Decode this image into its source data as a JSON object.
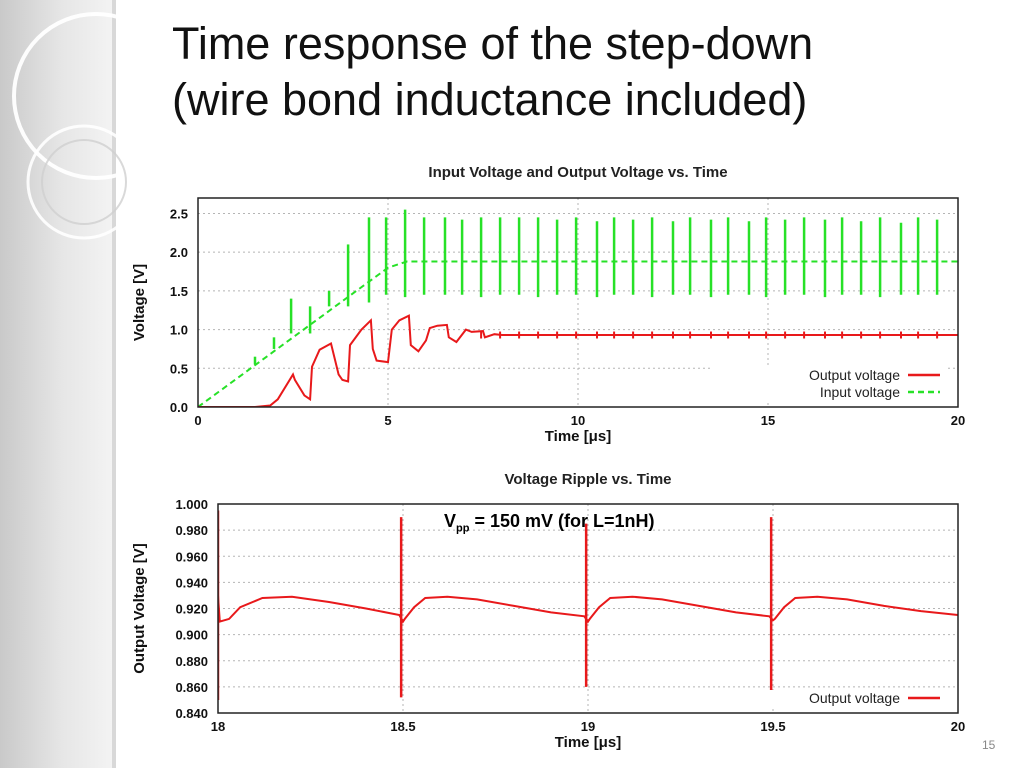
{
  "slide": {
    "title_line1": "Time response of the step-down",
    "title_line2": "(wire bond inductance included)",
    "slide_number": "15"
  },
  "annotation": {
    "main": "V",
    "sub": "pp",
    "rest": " = 150 mV (for L=1nH)"
  },
  "chart_data": [
    {
      "type": "line",
      "title": "Input Voltage and Output Voltage vs. Time",
      "xlabel": "Time [μs]",
      "ylabel": "Voltage [V]",
      "xlim": [
        0,
        20
      ],
      "ylim": [
        0,
        2.7
      ],
      "xticks": [
        0,
        5,
        10,
        15,
        20
      ],
      "yticks": [
        0,
        0.5,
        1.0,
        1.5,
        2.0,
        2.5
      ],
      "ytick_labels": [
        "0.0",
        "0.5",
        "1.0",
        "1.5",
        "2.0",
        "2.5"
      ],
      "grid": true,
      "legend_position": "bottom-right",
      "series": [
        {
          "name": "Output voltage",
          "color": "#e8191b",
          "style": "solid",
          "x": [
            0,
            1.5,
            1.9,
            2.1,
            2.5,
            2.55,
            2.8,
            2.95,
            3.0,
            3.2,
            3.5,
            3.7,
            3.8,
            3.95,
            4.0,
            4.3,
            4.55,
            4.6,
            4.7,
            5.0,
            5.1,
            5.3,
            5.55,
            5.6,
            5.8,
            6.0,
            6.1,
            6.3,
            6.55,
            6.6,
            6.8,
            7.05,
            7.2,
            7.5,
            7.55,
            7.8,
            8.0,
            20
          ],
          "y": [
            0,
            0,
            0.02,
            0.1,
            0.42,
            0.35,
            0.15,
            0.1,
            0.52,
            0.74,
            0.82,
            0.42,
            0.35,
            0.33,
            0.8,
            1.0,
            1.12,
            0.75,
            0.6,
            0.58,
            1.0,
            1.12,
            1.18,
            0.8,
            0.72,
            0.86,
            1.02,
            1.05,
            1.06,
            0.9,
            0.84,
            1.0,
            0.97,
            0.98,
            0.9,
            0.94,
            0.93,
            0.93
          ]
        },
        {
          "name": "Input voltage",
          "color": "#27e127",
          "style": "dashed",
          "x": [
            0,
            5,
            5.5,
            20
          ],
          "y": [
            0,
            1.8,
            1.88,
            1.88
          ]
        }
      ],
      "spike_times": [
        1.5,
        2.0,
        2.45,
        2.95,
        3.45,
        3.95,
        4.5,
        4.95,
        5.45,
        5.95,
        6.5,
        6.95,
        7.45,
        7.95,
        8.45,
        8.95,
        9.45,
        9.95,
        10.5,
        10.95,
        11.45,
        11.95,
        12.5,
        12.95,
        13.5,
        13.95,
        14.5,
        14.95,
        15.45,
        15.95,
        16.5,
        16.95,
        17.45,
        17.95,
        18.5,
        18.95,
        19.45
      ],
      "spike_highs": [
        0.65,
        0.9,
        1.4,
        1.3,
        1.5,
        2.1,
        2.45,
        2.45,
        2.55,
        2.45,
        2.45,
        2.42,
        2.45,
        2.45,
        2.45,
        2.45,
        2.42,
        2.45,
        2.4,
        2.45,
        2.42,
        2.45,
        2.4,
        2.45,
        2.42,
        2.45,
        2.4,
        2.45,
        2.42,
        2.45,
        2.42,
        2.45,
        2.4,
        2.45,
        2.38,
        2.45,
        2.42
      ],
      "spike_lows": [
        0.55,
        0.75,
        0.95,
        0.95,
        1.3,
        1.3,
        1.35,
        1.45,
        1.42,
        1.45,
        1.45,
        1.45,
        1.42,
        1.45,
        1.45,
        1.42,
        1.45,
        1.45,
        1.42,
        1.45,
        1.45,
        1.42,
        1.45,
        1.45,
        1.42,
        1.45,
        1.45,
        1.42,
        1.45,
        1.45,
        1.42,
        1.45,
        1.45,
        1.42,
        1.45,
        1.45,
        1.45
      ]
    },
    {
      "type": "line",
      "title": "Voltage Ripple vs. Time",
      "xlabel": "Time [μs]",
      "ylabel": "Output Voltage [V]",
      "xlim": [
        18,
        20
      ],
      "ylim": [
        0.84,
        1.0
      ],
      "xticks": [
        18,
        18.5,
        19,
        19.5,
        20
      ],
      "xtick_labels": [
        "18",
        "18.5",
        "19",
        "19.5",
        "20"
      ],
      "yticks": [
        0.84,
        0.86,
        0.88,
        0.9,
        0.92,
        0.94,
        0.96,
        0.98,
        1.0
      ],
      "ytick_labels": [
        "0.840",
        "0.860",
        "0.880",
        "0.900",
        "0.920",
        "0.940",
        "0.960",
        "0.980",
        "1.000"
      ],
      "grid": true,
      "legend_position": "bottom-right",
      "series": [
        {
          "name": "Output voltage",
          "color": "#e8191b",
          "style": "solid",
          "x": [
            18.0,
            18.005,
            18.03,
            18.06,
            18.12,
            18.2,
            18.3,
            18.4,
            18.49,
            18.5,
            18.505,
            18.53,
            18.56,
            18.62,
            18.7,
            18.8,
            18.9,
            18.99,
            19.0,
            19.005,
            19.03,
            19.06,
            19.12,
            19.2,
            19.3,
            19.4,
            19.49,
            19.5,
            19.505,
            19.53,
            19.56,
            19.62,
            19.7,
            19.8,
            19.9,
            20.0
          ],
          "y": [
            0.93,
            0.91,
            0.912,
            0.921,
            0.928,
            0.929,
            0.925,
            0.92,
            0.915,
            0.91,
            0.912,
            0.921,
            0.928,
            0.929,
            0.927,
            0.922,
            0.917,
            0.914,
            0.91,
            0.912,
            0.921,
            0.928,
            0.929,
            0.927,
            0.922,
            0.917,
            0.914,
            0.911,
            0.912,
            0.921,
            0.928,
            0.929,
            0.927,
            0.922,
            0.918,
            0.915
          ]
        }
      ],
      "spike_times": [
        18.0,
        18.495,
        18.995,
        19.495
      ],
      "spike_highs": [
        0.995,
        0.99,
        0.985,
        0.99
      ],
      "spike_lows": [
        0.85,
        0.852,
        0.86,
        0.855
      ]
    }
  ]
}
